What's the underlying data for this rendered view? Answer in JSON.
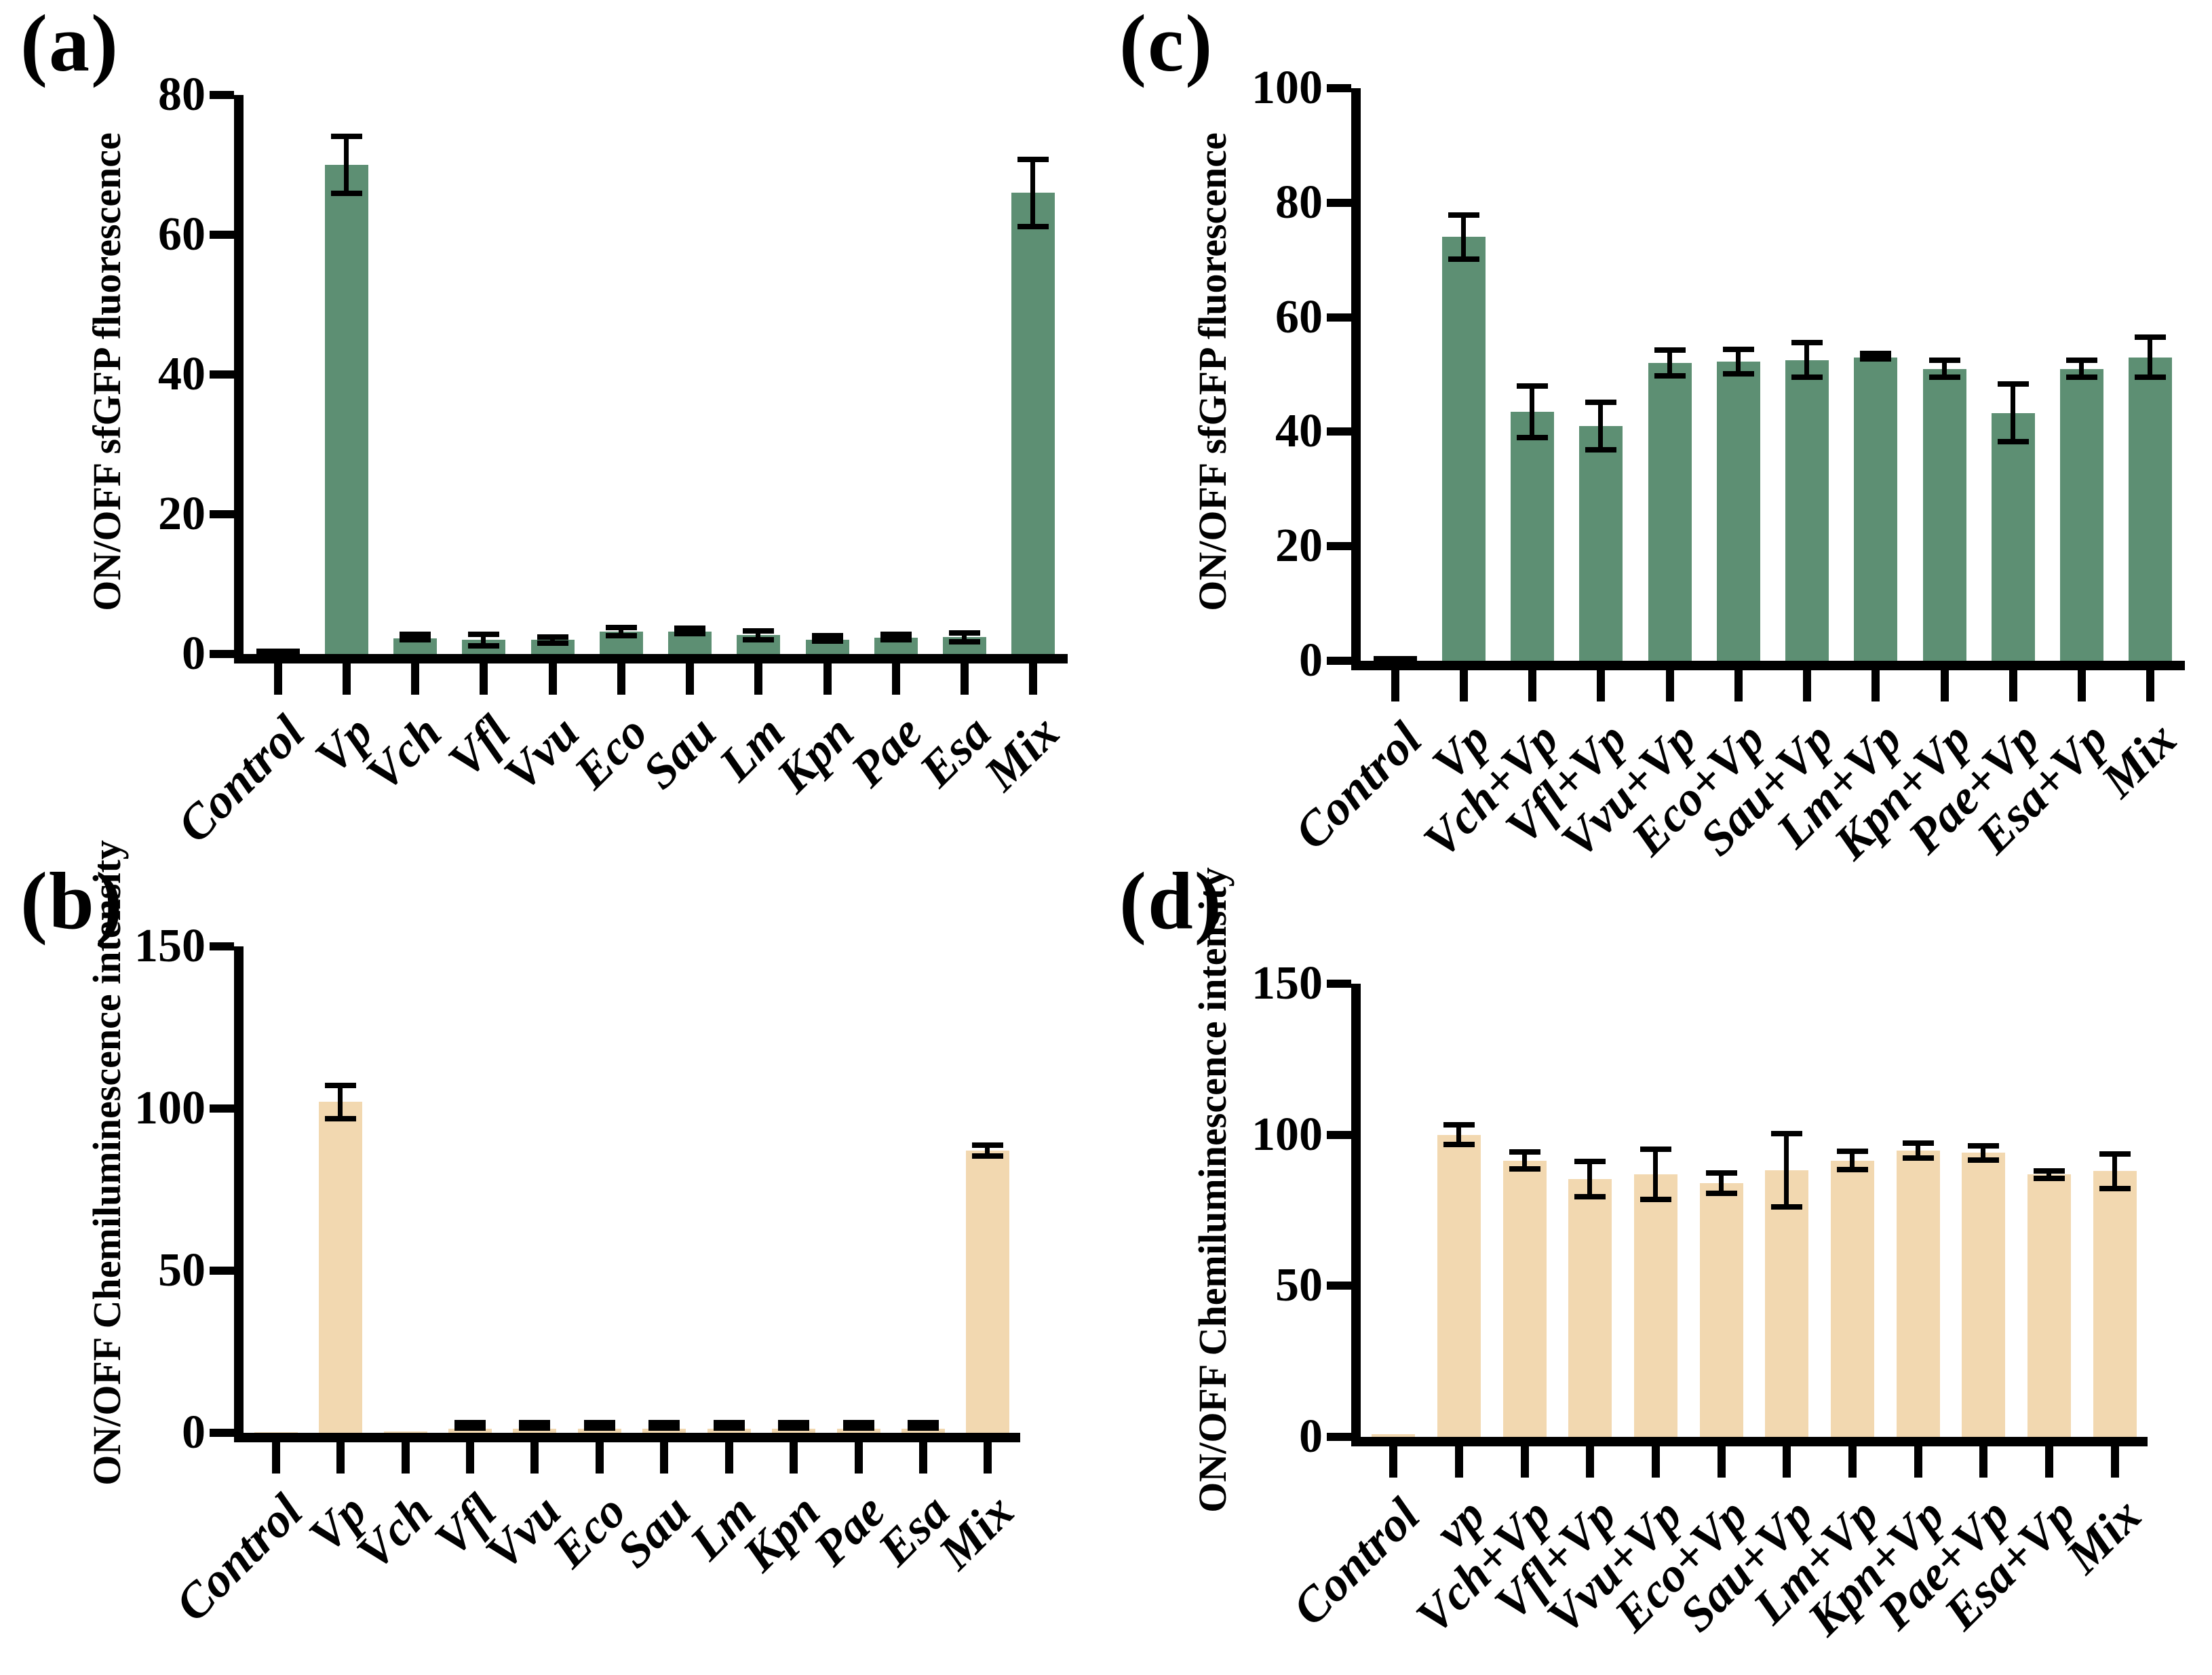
{
  "figure": {
    "background": "#ffffff",
    "bar_green": "#5D8F73",
    "bar_tan": "#F2D8B0",
    "axis_color": "#000000"
  },
  "chart_data": [
    {
      "type": "bar",
      "panel_label": "(a)",
      "ylabel": "ON/OFF sfGFP fluorescence",
      "xlabel": "",
      "ylim": [
        0,
        80
      ],
      "yticks": [
        0,
        20,
        40,
        60,
        80
      ],
      "grid": false,
      "legend": "none",
      "x_tick_rotation": 45,
      "bar_color": "#5D8F73",
      "control_color": "#000000",
      "error_color": "#000000",
      "categories": [
        "Control",
        "Vp",
        "Vch",
        "Vfl",
        "Vvu",
        "Eco",
        "Sau",
        "Lm",
        "Kpn",
        "Pae",
        "Esa",
        "Mix"
      ],
      "values": [
        0.8,
        70,
        2.2,
        2,
        2,
        3.2,
        3.2,
        2.7,
        2,
        2.3,
        2.4,
        66
      ],
      "errors": [
        0,
        4.5,
        0.5,
        1.2,
        0.8,
        1,
        0.7,
        1,
        0.5,
        0.6,
        1,
        5.2
      ]
    },
    {
      "type": "bar",
      "panel_label": "(b)",
      "ylabel": "ON/OFF Chemiluminescence intensity",
      "xlabel": "",
      "ylim": [
        0,
        150
      ],
      "yticks": [
        0,
        50,
        100,
        150
      ],
      "grid": false,
      "legend": "none",
      "x_tick_rotation": 45,
      "bar_color": "#F2D8B0",
      "control_color": "#F2D8B0",
      "error_color": "#000000",
      "categories": [
        "Control",
        "Vp",
        "Vch",
        "Vfl",
        "Vvu",
        "Eco",
        "Sau",
        "Lm",
        "Kpn",
        "Pae",
        "Esa",
        "Mix"
      ],
      "values": [
        0.3,
        102,
        0.4,
        1.2,
        1.2,
        1.2,
        1.2,
        1.2,
        1.2,
        1.2,
        1.3,
        87
      ],
      "errors": [
        0,
        6,
        0,
        0.6,
        0.6,
        0.6,
        0.6,
        0.6,
        0.6,
        0.6,
        0.7,
        2.5
      ]
    },
    {
      "type": "bar",
      "panel_label": "(c)",
      "ylabel": "ON/OFF sfGFP fluorescence",
      "xlabel": "",
      "ylim": [
        0,
        100
      ],
      "yticks": [
        0,
        20,
        40,
        60,
        80,
        100
      ],
      "grid": false,
      "legend": "none",
      "x_tick_rotation": 45,
      "bar_color": "#5D8F73",
      "control_color": "#000000",
      "error_color": "#000000",
      "categories": [
        "Control",
        "Vp",
        "Vch+Vp",
        "Vfl+Vp",
        "Vvu+Vp",
        "Eco+Vp",
        "Sau+Vp",
        "Lm+Vp",
        "Kpn+Vp",
        "Pae+Vp",
        "Esa+Vp",
        "Mix"
      ],
      "values": [
        0.8,
        74,
        43.5,
        41,
        52,
        52.3,
        52.5,
        53,
        51,
        43.3,
        51,
        53
      ],
      "errors": [
        0,
        4.3,
        5,
        4.6,
        2.7,
        2.6,
        3.5,
        0.7,
        2,
        5.5,
        2,
        4
      ]
    },
    {
      "type": "bar",
      "panel_label": "(d)",
      "ylabel": "ON/OFF Chemiluminescence intensity",
      "xlabel": "",
      "ylim": [
        0,
        150
      ],
      "yticks": [
        0,
        50,
        100,
        150
      ],
      "grid": false,
      "legend": "none",
      "x_tick_rotation": 45,
      "bar_color": "#F2D8B0",
      "control_color": "#F2D8B0",
      "error_color": "#000000",
      "categories": [
        "Control",
        "vp",
        "Vch+Vp",
        "Vfl+Vp",
        "Vvu+Vp",
        "Eco+Vp",
        "Sau+Vp",
        "Lm+Vp",
        "Kpn+Vp",
        "Pae+Vp",
        "Esa+Vp",
        "Mix"
      ],
      "values": [
        0.8,
        100,
        91.5,
        85.3,
        87,
        84,
        88.3,
        91.5,
        94.8,
        94,
        86.8,
        88
      ],
      "errors": [
        0,
        4.2,
        3.8,
        6.7,
        9.2,
        4.2,
        13,
        4,
        3.3,
        3.2,
        2.2,
        6.6
      ]
    }
  ]
}
